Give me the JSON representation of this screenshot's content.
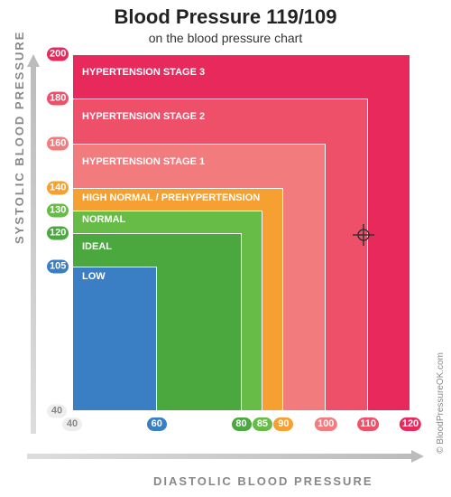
{
  "title": "Blood Pressure 119/109",
  "subtitle": "on the blood pressure chart",
  "y_axis_label": "SYSTOLIC BLOOD PRESSURE",
  "x_axis_label": "DIASTOLIC BLOOD PRESSURE",
  "credit": "© BloodPressureOK.com",
  "plot": {
    "x_range": [
      40,
      120
    ],
    "y_range": [
      40,
      200
    ]
  },
  "marker": {
    "diastolic": 109,
    "systolic": 119,
    "color": "#333"
  },
  "zones": [
    {
      "label": "HYPERTENSION STAGE 3",
      "x_max": 120,
      "y_max": 200,
      "color": "#e8295b",
      "text": "#fff"
    },
    {
      "label": "HYPERTENSION STAGE 2",
      "x_max": 110,
      "y_max": 180,
      "color": "#ee5069",
      "text": "#fff"
    },
    {
      "label": "HYPERTENSION STAGE 1",
      "x_max": 100,
      "y_max": 160,
      "color": "#f27b7e",
      "text": "#fff"
    },
    {
      "label": "HIGH NORMAL / PREHYPERTENSION",
      "x_max": 90,
      "y_max": 140,
      "color": "#f6a031",
      "text": "#fff"
    },
    {
      "label": "NORMAL",
      "x_max": 85,
      "y_max": 130,
      "color": "#67bb47",
      "text": "#fff"
    },
    {
      "label": "IDEAL",
      "x_max": 80,
      "y_max": 120,
      "color": "#4aa83e",
      "text": "#fff"
    },
    {
      "label": "LOW",
      "x_max": 60,
      "y_max": 105,
      "color": "#3a7fc3",
      "text": "#fff"
    }
  ],
  "y_ticks": [
    {
      "v": 200,
      "bg": "#e8295b",
      "fg": "#fff"
    },
    {
      "v": 180,
      "bg": "#ee5069",
      "fg": "#fff"
    },
    {
      "v": 160,
      "bg": "#f27b7e",
      "fg": "#fff"
    },
    {
      "v": 140,
      "bg": "#f6a031",
      "fg": "#fff"
    },
    {
      "v": 130,
      "bg": "#67bb47",
      "fg": "#fff"
    },
    {
      "v": 120,
      "bg": "#4aa83e",
      "fg": "#fff"
    },
    {
      "v": 105,
      "bg": "#3a7fc3",
      "fg": "#fff"
    },
    {
      "v": 40,
      "bg": "#eee",
      "fg": "#888"
    }
  ],
  "x_ticks": [
    {
      "v": 40,
      "bg": "#eee",
      "fg": "#888"
    },
    {
      "v": 60,
      "bg": "#3a7fc3",
      "fg": "#fff"
    },
    {
      "v": 80,
      "bg": "#4aa83e",
      "fg": "#fff"
    },
    {
      "v": 85,
      "bg": "#67bb47",
      "fg": "#fff"
    },
    {
      "v": 90,
      "bg": "#f6a031",
      "fg": "#fff"
    },
    {
      "v": 100,
      "bg": "#f27b7e",
      "fg": "#fff"
    },
    {
      "v": 110,
      "bg": "#ee5069",
      "fg": "#fff"
    },
    {
      "v": 120,
      "bg": "#e8295b",
      "fg": "#fff"
    }
  ]
}
